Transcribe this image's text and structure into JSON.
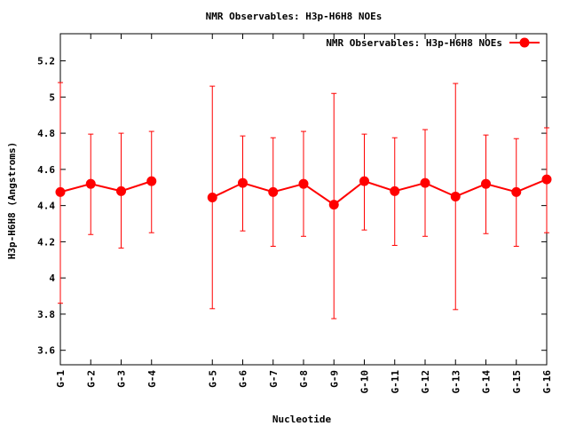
{
  "chart_data": {
    "type": "line",
    "title": "NMR Observables: H3p-H6H8 NOEs",
    "xlabel": "Nucleotide",
    "ylabel": "H3p-H6H8 (Angstroms)",
    "ylim": [
      3.52,
      5.35
    ],
    "yticks": [
      3.6,
      3.8,
      4,
      4.2,
      4.4,
      4.6,
      4.8,
      5,
      5.2
    ],
    "ytick_labels": [
      "3.6",
      "3.8",
      "4",
      "4.2",
      "4.4",
      "4.6",
      "4.8",
      "5",
      "5.2"
    ],
    "x_positions": [
      1,
      2,
      3,
      4,
      6,
      7,
      8,
      9,
      10,
      11,
      12,
      13,
      14,
      15,
      16,
      17
    ],
    "xlim": [
      1,
      17
    ],
    "categories": [
      "G-1",
      "G-2",
      "G-3",
      "G-4",
      "G-5",
      "G-6",
      "G-7",
      "G-8",
      "G-9",
      "G-10",
      "G-11",
      "G-12",
      "G-13",
      "G-14",
      "G-15",
      "G-16"
    ],
    "legend_position": "top-right",
    "grid": false,
    "series": [
      {
        "name": "NMR Observables: H3p-H6H8 NOEs",
        "color": "#ff0000",
        "segments": [
          [
            0,
            3
          ],
          [
            4,
            15
          ]
        ],
        "values": [
          4.475,
          4.52,
          4.48,
          4.535,
          4.445,
          4.525,
          4.475,
          4.52,
          4.405,
          4.535,
          4.48,
          4.525,
          4.45,
          4.52,
          4.475,
          4.545
        ],
        "err_low": [
          3.86,
          4.24,
          4.165,
          4.25,
          3.83,
          4.26,
          4.175,
          4.23,
          3.775,
          4.265,
          4.18,
          4.23,
          3.825,
          4.245,
          4.175,
          4.25
        ],
        "err_high": [
          5.08,
          4.795,
          4.8,
          4.81,
          5.06,
          4.785,
          4.775,
          4.81,
          5.02,
          4.795,
          4.775,
          4.82,
          5.075,
          4.79,
          4.77,
          4.83
        ]
      }
    ]
  }
}
